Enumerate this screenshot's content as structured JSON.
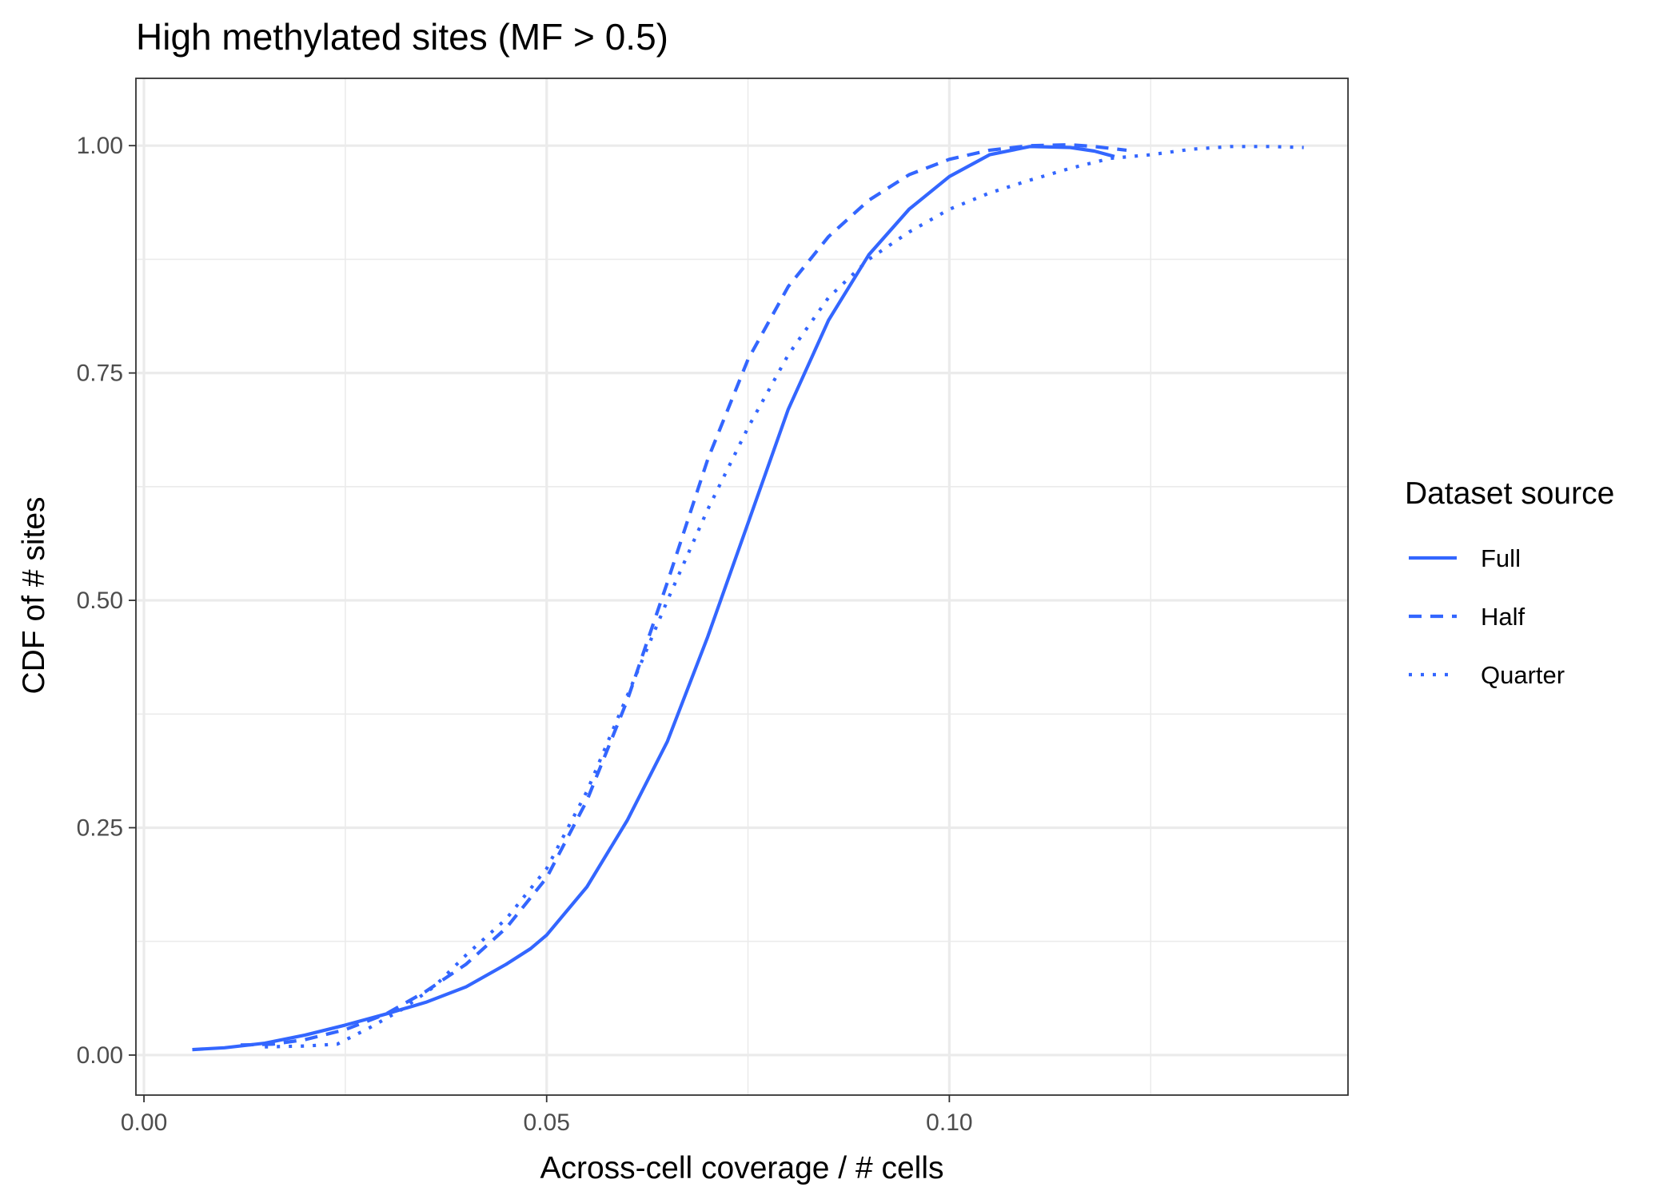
{
  "chart_data": {
    "type": "line",
    "title": "High methylated sites (MF > 0.5)",
    "xlabel": "Across-cell coverage / # cells",
    "ylabel": "CDF of # sites",
    "xlim": [
      -0.001,
      0.1495
    ],
    "ylim": [
      -0.044,
      1.074
    ],
    "x_ticks": [
      0.0,
      0.05,
      0.1
    ],
    "x_tick_labels": [
      "0.00",
      "0.05",
      "0.10"
    ],
    "y_ticks": [
      0.0,
      0.25,
      0.5,
      0.75,
      1.0
    ],
    "y_tick_labels": [
      "0.00",
      "0.25",
      "0.50",
      "0.75",
      "1.00"
    ],
    "x_minor_ticks": [
      0.025,
      0.075,
      0.125
    ],
    "y_minor_ticks": [
      0.125,
      0.375,
      0.625,
      0.875
    ],
    "grid": true,
    "legend": {
      "title": "Dataset source",
      "position": "right"
    },
    "line_color": "#3366ff",
    "series": [
      {
        "name": "Full",
        "linetype": "solid",
        "x": [
          0.006,
          0.01,
          0.015,
          0.02,
          0.025,
          0.03,
          0.035,
          0.04,
          0.045,
          0.048,
          0.05,
          0.055,
          0.06,
          0.065,
          0.07,
          0.075,
          0.08,
          0.085,
          0.09,
          0.095,
          0.1,
          0.105,
          0.11,
          0.115,
          0.118,
          0.1205
        ],
        "y": [
          0.006,
          0.008,
          0.013,
          0.022,
          0.033,
          0.045,
          0.058,
          0.075,
          0.1,
          0.117,
          0.132,
          0.185,
          0.258,
          0.345,
          0.46,
          0.585,
          0.71,
          0.808,
          0.88,
          0.93,
          0.966,
          0.99,
          0.999,
          0.998,
          0.994,
          0.988
        ]
      },
      {
        "name": "Half",
        "linetype": "dashed",
        "x": [
          0.012,
          0.016,
          0.02,
          0.025,
          0.03,
          0.035,
          0.04,
          0.045,
          0.05,
          0.055,
          0.06,
          0.065,
          0.07,
          0.075,
          0.08,
          0.085,
          0.09,
          0.095,
          0.1,
          0.105,
          0.11,
          0.115,
          0.118,
          0.122
        ],
        "y": [
          0.011,
          0.012,
          0.017,
          0.028,
          0.045,
          0.07,
          0.1,
          0.14,
          0.195,
          0.28,
          0.39,
          0.52,
          0.655,
          0.765,
          0.845,
          0.9,
          0.94,
          0.968,
          0.985,
          0.995,
          1.0,
          1.001,
          0.999,
          0.995
        ]
      },
      {
        "name": "Quarter",
        "linetype": "dotted",
        "x": [
          0.015,
          0.02,
          0.024,
          0.028,
          0.032,
          0.036,
          0.04,
          0.045,
          0.05,
          0.055,
          0.06,
          0.065,
          0.07,
          0.075,
          0.08,
          0.085,
          0.09,
          0.095,
          0.1,
          0.105,
          0.11,
          0.115,
          0.12,
          0.125,
          0.13,
          0.135,
          0.14,
          0.144
        ],
        "y": [
          0.009,
          0.01,
          0.012,
          0.03,
          0.05,
          0.075,
          0.11,
          0.15,
          0.205,
          0.29,
          0.395,
          0.5,
          0.6,
          0.69,
          0.77,
          0.833,
          0.875,
          0.905,
          0.93,
          0.948,
          0.962,
          0.975,
          0.986,
          0.99,
          0.996,
          0.999,
          0.999,
          0.998
        ]
      }
    ]
  }
}
